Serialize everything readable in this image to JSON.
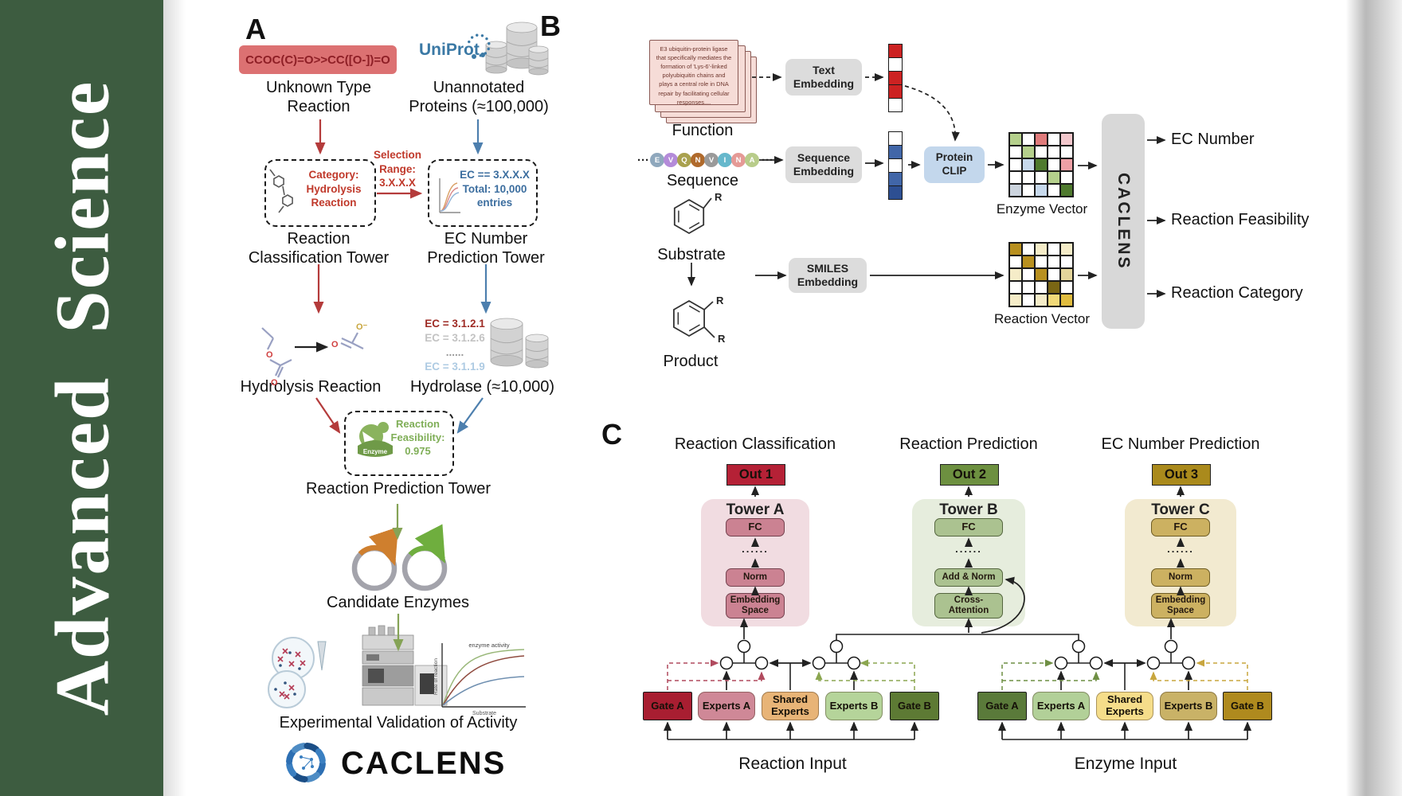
{
  "sidebar": {
    "journal": "Advanced  Science",
    "bg": "#3d5c40",
    "text_color": "#ffffff"
  },
  "panelA": {
    "label": "A",
    "smiles": "CCOC(C)=O>>CC([O-])=O",
    "smiles_bg": "#dc7172",
    "unknown_reaction": "Unknown Type\nReaction",
    "uniprot": "UniProt",
    "unannotated": "Unannotated\nProteins (≈100,000)",
    "category_box": "Category:\nHydrolysis\nReaction",
    "selection": "Selection\nRange:\n3.X.X.X",
    "ec_box": "EC == 3.X.X.X\nTotal: 10,000\nentries",
    "classification_tower": "Reaction\nClassification Tower",
    "ec_tower": "EC Number\nPrediction Tower",
    "hydrolysis": "Hydrolysis Reaction",
    "hydrolase": "Hydrolase (≈10,000)",
    "ec_list": [
      {
        "text": "EC = 3.1.2.1",
        "color": "#9e2b25"
      },
      {
        "text": "EC = 3.1.2.6",
        "color": "#c3c3c3"
      },
      {
        "text": "......",
        "color": "#9a9a9a"
      },
      {
        "text": "EC = 3.1.1.9",
        "color": "#aecbe3"
      }
    ],
    "enzyme": "Enzyme",
    "feasibility": "Reaction\nFeasibility:\n0.975",
    "prediction_tower": "Reaction Prediction Tower",
    "candidate": "Candidate Enzymes",
    "validation": "Experimental Validation of Activity",
    "brand": "CACLENS",
    "atoms": {
      "o": "O",
      "ominus": "O⁻"
    },
    "plot": {
      "curve": "enzyme activity",
      "y": "Rate of reaction",
      "x": "Substrate"
    }
  },
  "panelB": {
    "label": "B",
    "function_card": "E3 ubiquitin-protein ligase that specifically mediates the formation of 'Lys-6'-linked polyubiquitin chains and plays a central role in DNA repair by facilitating cellular responses....",
    "function": "Function",
    "sequence_label": "Sequence",
    "sequence": {
      "ellipsis": "···",
      "letters": [
        {
          "ch": "E",
          "color": "#8fa8bd"
        },
        {
          "ch": "V",
          "color": "#b48bd9"
        },
        {
          "ch": "Q",
          "color": "#a9a14e"
        },
        {
          "ch": "N",
          "color": "#b06a2c"
        },
        {
          "ch": "V",
          "color": "#9a9a9a"
        },
        {
          "ch": "I",
          "color": "#66b8cc"
        },
        {
          "ch": "N",
          "color": "#e59a96"
        },
        {
          "ch": "A",
          "color": "#b8cc8a"
        }
      ]
    },
    "substrate": "Substrate",
    "product": "Product",
    "r_label": "R",
    "text_embedding": "Text\nEmbedding",
    "sequence_embedding": "Sequence\nEmbedding",
    "smiles_embedding": "SMILES\nEmbedding",
    "protein_clip": "Protein\nCLIP",
    "protein_clip_bg": "#c3d7ec",
    "text_vector": [
      "#cc2222",
      "#ffffff",
      "#cc2222",
      "#cc2222",
      "#ffffff"
    ],
    "sequence_vector": [
      "#ffffff",
      "#4166a8",
      "#ffffff",
      "#4166a8",
      "#2d4f92"
    ],
    "enzyme_vector_label": "Enzyme Vector",
    "reaction_vector_label": "Reaction Vector",
    "enzyme_vector": [
      [
        "#b5d08c",
        "#ffffff",
        "#e07b7b",
        "#ffffff",
        "#f2c7cc"
      ],
      [
        "#ffffff",
        "#b5d08c",
        "#ffffff",
        "#ffffff",
        "#ffffff"
      ],
      [
        "#ffffff",
        "#c7d9ec",
        "#4f7a2e",
        "#ffffff",
        "#eda0a5"
      ],
      [
        "#ffffff",
        "#ffffff",
        "#ffffff",
        "#b5d08c",
        "#ffffff"
      ],
      [
        "#ccd4de",
        "#ffffff",
        "#c7d9ec",
        "#ffffff",
        "#4f7a2e"
      ]
    ],
    "reaction_vector": [
      [
        "#b8901f",
        "#ffffff",
        "#f5ecc8",
        "#ffffff",
        "#f5ecc8"
      ],
      [
        "#ffffff",
        "#b8901f",
        "#ffffff",
        "#ffffff",
        "#ffffff"
      ],
      [
        "#f5ecc8",
        "#ffffff",
        "#b8901f",
        "#ffffff",
        "#e3d49a"
      ],
      [
        "#ffffff",
        "#ffffff",
        "#ffffff",
        "#7a6614",
        "#ffffff"
      ],
      [
        "#f5ecc8",
        "#ffffff",
        "#f5ecc8",
        "#f0d978",
        "#e0bc3f"
      ]
    ],
    "caclens": "CACLENS",
    "outputs": [
      "EC Number",
      "Reaction Feasibility",
      "Reaction Category"
    ]
  },
  "panelC": {
    "label": "C",
    "headers": [
      "Reaction Classification",
      "Reaction Prediction",
      "EC Number Prediction"
    ],
    "outs": [
      {
        "text": "Out 1",
        "bg": "#b52136"
      },
      {
        "text": "Out 2",
        "bg": "#6d9040"
      },
      {
        "text": "Out 3",
        "bg": "#aa8a1c"
      }
    ],
    "towers": [
      {
        "name": "Tower A",
        "fc": "FC",
        "dots": "......",
        "mid": "Norm",
        "bottom": "Embedding\nSpace",
        "bg": "#f1dce1",
        "box_bg": "#cb8292",
        "box_border": "#74414e"
      },
      {
        "name": "Tower B",
        "fc": "FC",
        "dots": "......",
        "mid": "Add & Norm",
        "bottom": "Cross-\nAttention",
        "bg": "#e6eddd",
        "box_bg": "#abc290",
        "box_border": "#55663f"
      },
      {
        "name": "Tower C",
        "fc": "FC",
        "dots": "......",
        "mid": "Norm",
        "bottom": "Embedding\nSpace",
        "bg": "#f2ead0",
        "box_bg": "#ccb161",
        "box_border": "#6e5c22"
      }
    ],
    "moe": [
      {
        "input": "Reaction Input",
        "boxes": [
          {
            "text": "Gate A",
            "bg": "#a81e31",
            "shape": "gate"
          },
          {
            "text": "Experts A",
            "bg": "#cf8897",
            "shape": "round"
          },
          {
            "text": "Shared\nExperts",
            "bg": "#e8b477",
            "shape": "round"
          },
          {
            "text": "Experts B",
            "bg": "#b5d49a",
            "shape": "round"
          },
          {
            "text": "Gate B",
            "bg": "#5d7a34",
            "shape": "gate"
          }
        ]
      },
      {
        "input": "Enzyme Input",
        "boxes": [
          {
            "text": "Gate A",
            "bg": "#5a7a3a",
            "shape": "gate"
          },
          {
            "text": "Experts A",
            "bg": "#b2d098",
            "shape": "round"
          },
          {
            "text": "Shared\nExperts",
            "bg": "#f5dd8a",
            "shape": "round"
          },
          {
            "text": "Experts B",
            "bg": "#c9b267",
            "shape": "round"
          },
          {
            "text": "Gate B",
            "bg": "#af8a1e",
            "shape": "gate"
          }
        ]
      }
    ]
  }
}
